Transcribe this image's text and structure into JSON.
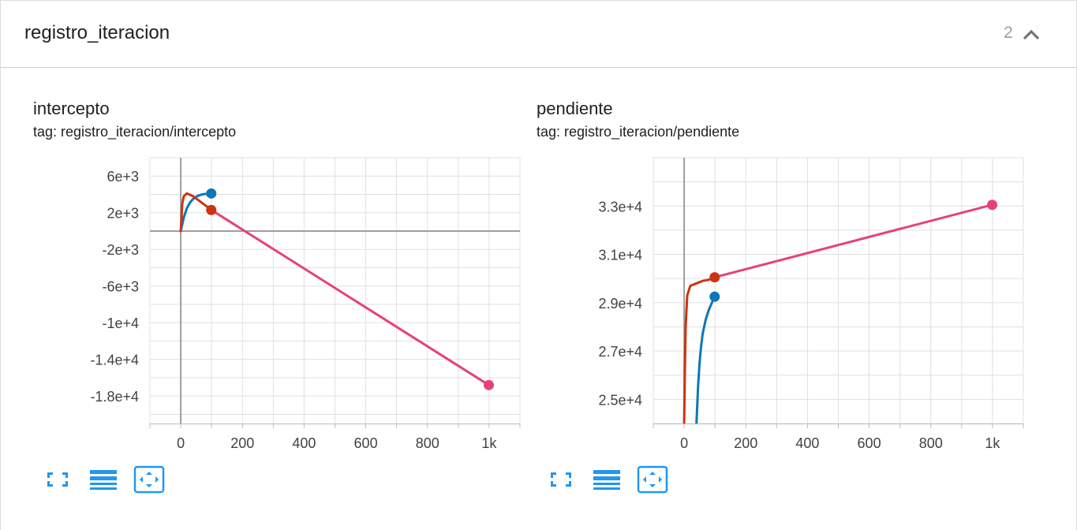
{
  "header": {
    "title": "registro_iteracion",
    "count": "2"
  },
  "colors": {
    "series_blue": "#0d77b7",
    "series_orange": "#cc3311",
    "series_pink": "#e7417a",
    "grid": "#e0e0e0",
    "axis": "#9e9e9e",
    "icon": "#2196f3"
  },
  "icons": {
    "collapse": "chevron-up-icon",
    "fullscreen": "fullscreen-icon",
    "data": "list-icon",
    "fit": "fit-domain-icon"
  },
  "chart_data": [
    {
      "type": "line",
      "title": "intercepto",
      "subtitle": "tag: registro_iteracion/intercepto",
      "xlabel": "",
      "ylabel": "",
      "xlim": [
        -100,
        1100
      ],
      "ylim": [
        -21000,
        8000
      ],
      "x_ticks": [
        0,
        200,
        400,
        600,
        800,
        1000
      ],
      "x_tick_labels": [
        "0",
        "200",
        "400",
        "600",
        "800",
        "1k"
      ],
      "y_ticks": [
        6000,
        2000,
        -2000,
        -6000,
        -10000,
        -14000,
        -18000
      ],
      "y_tick_labels": [
        "6e+3",
        "2e+3",
        "-2e+3",
        "-6e+3",
        "-1e+4",
        "-1.4e+4",
        "-1.8e+4"
      ],
      "grid": true,
      "series": [
        {
          "color": "#0d77b7",
          "x": [
            0,
            10,
            20,
            30,
            40,
            50,
            60,
            70,
            80,
            90,
            99
          ],
          "y": [
            0,
            1500,
            2500,
            3100,
            3500,
            3750,
            3900,
            4000,
            4050,
            4080,
            4100
          ]
        },
        {
          "color": "#cc3311",
          "x": [
            0,
            5,
            10,
            20,
            40,
            60,
            80,
            99
          ],
          "y": [
            0,
            3000,
            3800,
            4100,
            3800,
            3300,
            2800,
            2300
          ]
        },
        {
          "color": "#e7417a",
          "x": [
            99,
            999
          ],
          "y": [
            2300,
            -16800
          ]
        }
      ]
    },
    {
      "type": "line",
      "title": "pendiente",
      "subtitle": "tag: registro_iteracion/pendiente",
      "xlabel": "",
      "ylabel": "",
      "xlim": [
        -100,
        1100
      ],
      "ylim": [
        24000,
        35000
      ],
      "x_ticks": [
        0,
        200,
        400,
        600,
        800,
        1000
      ],
      "x_tick_labels": [
        "0",
        "200",
        "400",
        "600",
        "800",
        "1k"
      ],
      "y_ticks": [
        33000,
        31000,
        29000,
        27000,
        25000
      ],
      "y_tick_labels": [
        "3.3e+4",
        "3.1e+4",
        "2.9e+4",
        "2.7e+4",
        "2.5e+4"
      ],
      "grid": true,
      "series": [
        {
          "color": "#0d77b7",
          "x": [
            40,
            45,
            50,
            55,
            60,
            70,
            80,
            90,
            99
          ],
          "y": [
            24000,
            25500,
            26500,
            27200,
            27700,
            28300,
            28700,
            29000,
            29250
          ]
        },
        {
          "color": "#cc3311",
          "x": [
            0,
            2,
            5,
            10,
            20,
            40,
            60,
            80,
            99
          ],
          "y": [
            24000,
            26000,
            28000,
            29300,
            29700,
            29800,
            29900,
            29950,
            30050
          ]
        },
        {
          "color": "#e7417a",
          "x": [
            99,
            999
          ],
          "y": [
            30050,
            33050
          ]
        }
      ]
    }
  ]
}
